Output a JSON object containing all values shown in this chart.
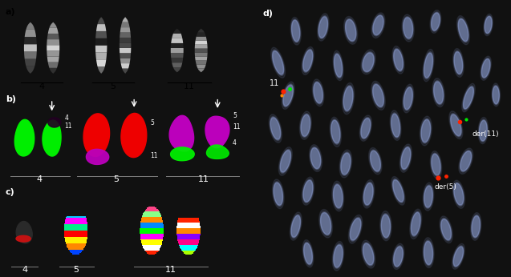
{
  "fig_width": 6.37,
  "fig_height": 3.46,
  "dpi": 100,
  "panel_a_bg": "#ffffff",
  "panel_b_bg": "#000000",
  "panel_c_bg": "#000000",
  "panel_d_bg": "#000000",
  "panel_a_label": "a)",
  "panel_b_label": "b)",
  "panel_c_label": "c)",
  "panel_d_label": "d)",
  "green_color": "#00ee00",
  "red_color": "#ee0000",
  "purple_color": "#bb00bb",
  "white": "#ffffff",
  "gray": "#aaaaaa",
  "blue_chr": "#9999cc"
}
